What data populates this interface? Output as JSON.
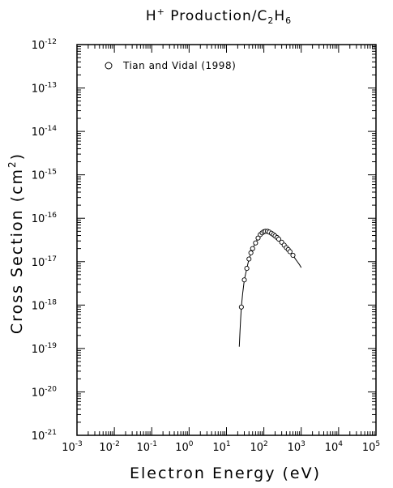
{
  "chart_data": {
    "type": "scatter",
    "title": "H⁺ Production/C₂H₆",
    "xlabel": "Electron Energy (eV)",
    "ylabel": "Cross Section (cm²)",
    "x_scale": "log",
    "y_scale": "log",
    "xlim": [
      0.001,
      100000
    ],
    "ylim": [
      1e-21,
      1e-12
    ],
    "x_ticks": [
      {
        "base": "10",
        "exp": "-3"
      },
      {
        "base": "10",
        "exp": "-2"
      },
      {
        "base": "10",
        "exp": "-1"
      },
      {
        "base": "10",
        "exp": "0"
      },
      {
        "base": "10",
        "exp": "1"
      },
      {
        "base": "10",
        "exp": "2"
      },
      {
        "base": "10",
        "exp": "3"
      },
      {
        "base": "10",
        "exp": "4"
      },
      {
        "base": "10",
        "exp": "5"
      }
    ],
    "y_ticks": [
      {
        "base": "10",
        "exp": "-12"
      },
      {
        "base": "10",
        "exp": "-13"
      },
      {
        "base": "10",
        "exp": "-14"
      },
      {
        "base": "10",
        "exp": "-15"
      },
      {
        "base": "10",
        "exp": "-16"
      },
      {
        "base": "10",
        "exp": "-17"
      },
      {
        "base": "10",
        "exp": "-18"
      },
      {
        "base": "10",
        "exp": "-19"
      },
      {
        "base": "10",
        "exp": "-20"
      },
      {
        "base": "10",
        "exp": "-21"
      }
    ],
    "grid": false,
    "legend_position": "top-left",
    "series": [
      {
        "name": "Tian and Vidal (1998)",
        "marker": "open-circle",
        "x": [
          25,
          30,
          35,
          40,
          45,
          50,
          60,
          70,
          80,
          90,
          100,
          110,
          125,
          140,
          160,
          180,
          200,
          225,
          250,
          300,
          350,
          400,
          450,
          500,
          600
        ],
        "y": [
          9e-19,
          3.8e-18,
          7e-18,
          1.15e-17,
          1.6e-17,
          2e-17,
          2.7e-17,
          3.5e-17,
          4.2e-17,
          4.6e-17,
          4.9e-17,
          5e-17,
          5e-17,
          4.8e-17,
          4.5e-17,
          4.2e-17,
          3.9e-17,
          3.6e-17,
          3.3e-17,
          2.8e-17,
          2.4e-17,
          2.1e-17,
          1.9e-17,
          1.7e-17,
          1.4e-17
        ]
      }
    ],
    "fit_curve": {
      "x": [
        22,
        23,
        24,
        25,
        27,
        30,
        35,
        40,
        50,
        60,
        70,
        80,
        90,
        100,
        115,
        130,
        150,
        175,
        200,
        250,
        300,
        400,
        500,
        600,
        700,
        800,
        900,
        1000
      ],
      "y": [
        1.1e-19,
        2.5e-19,
        5e-19,
        9e-19,
        1.8e-18,
        3.8e-18,
        7e-18,
        1.15e-17,
        2e-17,
        2.7e-17,
        3.5e-17,
        4.2e-17,
        4.6e-17,
        4.9e-17,
        5.05e-17,
        5e-17,
        4.75e-17,
        4.3e-17,
        3.9e-17,
        3.3e-17,
        2.8e-17,
        2.1e-17,
        1.7e-17,
        1.4e-17,
        1.15e-17,
        9.8e-18,
        8.5e-18,
        7.3e-18
      ]
    }
  }
}
